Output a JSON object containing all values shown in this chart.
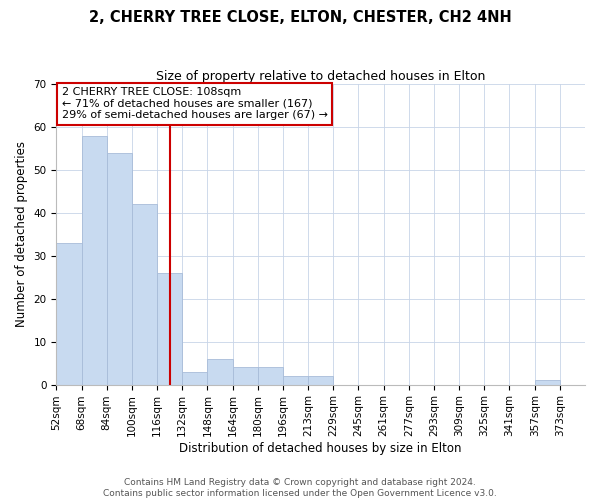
{
  "title1": "2, CHERRY TREE CLOSE, ELTON, CHESTER, CH2 4NH",
  "title2": "Size of property relative to detached houses in Elton",
  "xlabel": "Distribution of detached houses by size in Elton",
  "ylabel": "Number of detached properties",
  "bin_labels": [
    "52sqm",
    "68sqm",
    "84sqm",
    "100sqm",
    "116sqm",
    "132sqm",
    "148sqm",
    "164sqm",
    "180sqm",
    "196sqm",
    "213sqm",
    "229sqm",
    "245sqm",
    "261sqm",
    "277sqm",
    "293sqm",
    "309sqm",
    "325sqm",
    "341sqm",
    "357sqm",
    "373sqm"
  ],
  "bar_heights": [
    33,
    58,
    54,
    42,
    26,
    3,
    6,
    4,
    4,
    2,
    2,
    0,
    0,
    0,
    0,
    0,
    0,
    0,
    0,
    1,
    0
  ],
  "bar_color": "#c8daf0",
  "bar_edge_color": "#a8bcd8",
  "ylim": [
    0,
    70
  ],
  "yticks": [
    0,
    10,
    20,
    30,
    40,
    50,
    60,
    70
  ],
  "red_line_color": "#cc0000",
  "annotation_title": "2 CHERRY TREE CLOSE: 108sqm",
  "annotation_line1": "← 71% of detached houses are smaller (167)",
  "annotation_line2": "29% of semi-detached houses are larger (67) →",
  "annotation_box_color": "#ffffff",
  "annotation_box_edge_color": "#cc0000",
  "footer1": "Contains HM Land Registry data © Crown copyright and database right 2024.",
  "footer2": "Contains public sector information licensed under the Open Government Licence v3.0.",
  "title_fontsize": 10.5,
  "subtitle_fontsize": 9,
  "axis_label_fontsize": 8.5,
  "tick_fontsize": 7.5,
  "annotation_fontsize": 8,
  "footer_fontsize": 6.5
}
